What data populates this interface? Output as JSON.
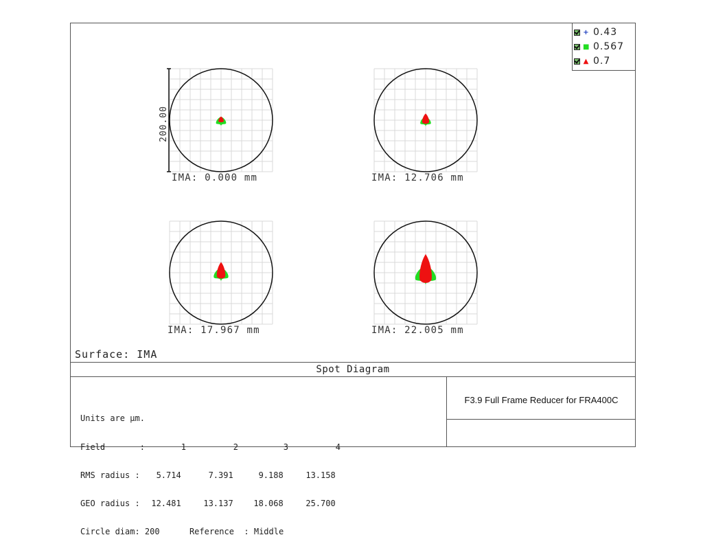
{
  "chart_data": {
    "type": "scatter",
    "title": "Spot Diagram",
    "surface_label": "Surface: IMA",
    "scale_bar_label": "200.00",
    "circle_diam_um": 200,
    "legend": [
      {
        "label": "0.43",
        "color": "#1f3fbf",
        "marker": "cross"
      },
      {
        "label": "0.567",
        "color": "#22dd22",
        "marker": "square"
      },
      {
        "label": "0.7",
        "color": "#ee1111",
        "marker": "triangle"
      }
    ],
    "fields": [
      {
        "label": "IMA: 0.000 mm",
        "rms_radius_um": 5.714,
        "geo_radius_um": 12.481
      },
      {
        "label": "IMA: 12.706 mm",
        "rms_radius_um": 7.391,
        "geo_radius_um": 13.137
      },
      {
        "label": "IMA: 17.967 mm",
        "rms_radius_um": 9.188,
        "geo_radius_um": 18.068
      },
      {
        "label": "IMA: 22.005 mm",
        "rms_radius_um": 13.158,
        "geo_radius_um": 25.7
      }
    ]
  },
  "design_title": "F3.9 Full Frame Reducer for FRA400C",
  "info_table": {
    "units": "Units are µm.",
    "field_row": [
      "Field       :",
      "1",
      "2",
      "3",
      "4"
    ],
    "rms_row": [
      "RMS radius :",
      "5.714",
      "7.391",
      "9.188",
      "13.158"
    ],
    "geo_row": [
      "GEO radius :",
      "12.481",
      "13.137",
      "18.068",
      "25.700"
    ],
    "circle_row": "Circle diam: 200      Reference  : Middle"
  }
}
